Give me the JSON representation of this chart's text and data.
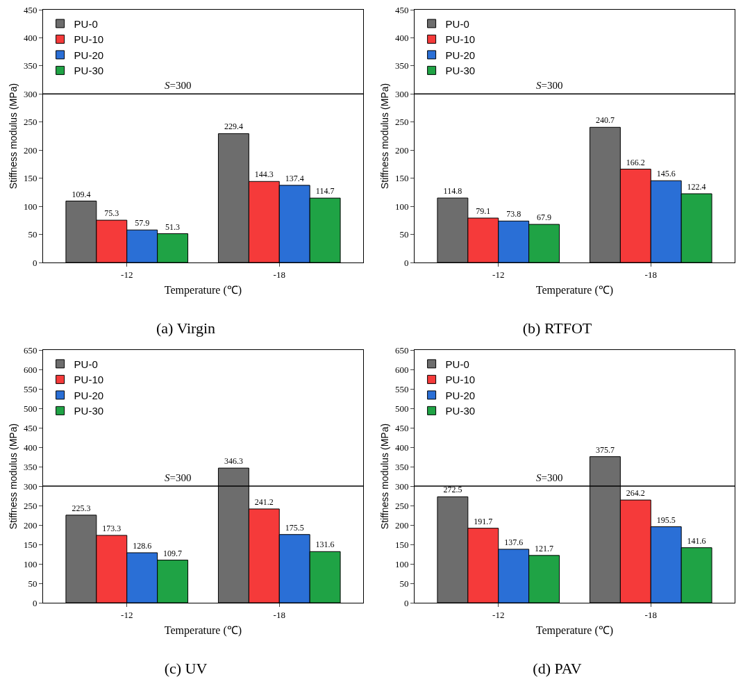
{
  "chart_data": [
    {
      "type": "bar",
      "title": "(a) Virgin",
      "xlabel": "Temperature (℃)",
      "ylabel": "Stiffness modulus (MPa)",
      "categories": [
        "-12",
        "-18"
      ],
      "series": [
        {
          "name": "PU-0",
          "color": "#6d6d6d",
          "values": [
            109.4,
            229.4
          ]
        },
        {
          "name": "PU-10",
          "color": "#f53a3a",
          "values": [
            75.3,
            144.3
          ]
        },
        {
          "name": "PU-20",
          "color": "#2a6fd6",
          "values": [
            57.9,
            137.4
          ]
        },
        {
          "name": "PU-30",
          "color": "#1fa345",
          "values": [
            51.3,
            114.7
          ]
        }
      ],
      "ylim": [
        0,
        450
      ],
      "yticks": [
        0,
        50,
        100,
        150,
        200,
        250,
        300,
        350,
        400,
        450
      ],
      "data_labels": true,
      "legend": "top left",
      "grid": false,
      "ref_lines": [
        {
          "axis": "y",
          "value": 300,
          "label": "S=300",
          "color": "#000000"
        }
      ]
    },
    {
      "type": "bar",
      "title": "(b) RTFOT",
      "xlabel": "Temperature (℃)",
      "ylabel": "Stiffness modulus (MPa)",
      "categories": [
        "-12",
        "-18"
      ],
      "series": [
        {
          "name": "PU-0",
          "color": "#6d6d6d",
          "values": [
            114.8,
            240.7
          ]
        },
        {
          "name": "PU-10",
          "color": "#f53a3a",
          "values": [
            79.1,
            166.2
          ]
        },
        {
          "name": "PU-20",
          "color": "#2a6fd6",
          "values": [
            73.8,
            145.6
          ]
        },
        {
          "name": "PU-30",
          "color": "#1fa345",
          "values": [
            67.9,
            122.4
          ]
        }
      ],
      "ylim": [
        0,
        450
      ],
      "yticks": [
        0,
        50,
        100,
        150,
        200,
        250,
        300,
        350,
        400,
        450
      ],
      "data_labels": true,
      "legend": "top left",
      "grid": false,
      "ref_lines": [
        {
          "axis": "y",
          "value": 300,
          "label": "S=300",
          "color": "#000000"
        }
      ]
    },
    {
      "type": "bar",
      "title": "(c) UV",
      "xlabel": "Temperature (℃)",
      "ylabel": "Stiffness modulus (MPa)",
      "categories": [
        "-12",
        "-18"
      ],
      "series": [
        {
          "name": "PU-0",
          "color": "#6d6d6d",
          "values": [
            225.3,
            346.3
          ]
        },
        {
          "name": "PU-10",
          "color": "#f53a3a",
          "values": [
            173.3,
            241.2
          ]
        },
        {
          "name": "PU-20",
          "color": "#2a6fd6",
          "values": [
            128.6,
            175.5
          ]
        },
        {
          "name": "PU-30",
          "color": "#1fa345",
          "values": [
            109.7,
            131.6
          ]
        }
      ],
      "ylim": [
        0,
        650
      ],
      "yticks": [
        0,
        50,
        100,
        150,
        200,
        250,
        300,
        350,
        400,
        450,
        500,
        550,
        600,
        650
      ],
      "data_labels": true,
      "legend": "top left",
      "grid": false,
      "ref_lines": [
        {
          "axis": "y",
          "value": 300,
          "label": "S=300",
          "color": "#000000"
        }
      ]
    },
    {
      "type": "bar",
      "title": "(d) PAV",
      "xlabel": "Temperature (℃)",
      "ylabel": "Stiffness modulus (MPa)",
      "categories": [
        "-12",
        "-18"
      ],
      "series": [
        {
          "name": "PU-0",
          "color": "#6d6d6d",
          "values": [
            272.5,
            375.7
          ]
        },
        {
          "name": "PU-10",
          "color": "#f53a3a",
          "values": [
            191.7,
            264.2
          ]
        },
        {
          "name": "PU-20",
          "color": "#2a6fd6",
          "values": [
            137.6,
            195.5
          ]
        },
        {
          "name": "PU-30",
          "color": "#1fa345",
          "values": [
            121.7,
            141.6
          ]
        }
      ],
      "ylim": [
        0,
        650
      ],
      "yticks": [
        0,
        50,
        100,
        150,
        200,
        250,
        300,
        350,
        400,
        450,
        500,
        550,
        600,
        650
      ],
      "data_labels": true,
      "legend": "top left",
      "grid": false,
      "ref_lines": [
        {
          "axis": "y",
          "value": 300,
          "label": "S=300",
          "color": "#000000"
        }
      ]
    }
  ]
}
